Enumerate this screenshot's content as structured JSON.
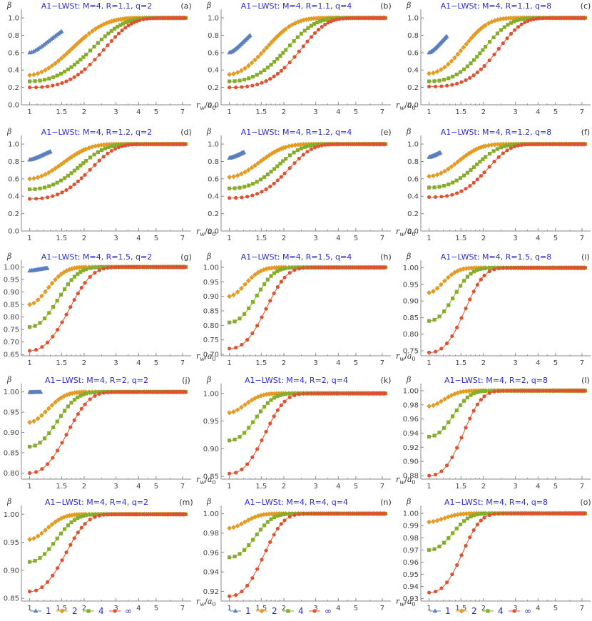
{
  "colors": {
    "s1": "#5b7fbf",
    "s2": "#e59b22",
    "s4": "#86ac2e",
    "sinf": "#e0522f",
    "title": "#2b2bd6",
    "axis": "#888888"
  },
  "legend": [
    {
      "label": "1",
      "marker": "triangle-icon"
    },
    {
      "label": "2",
      "marker": "diamond-icon"
    },
    {
      "label": "4",
      "marker": "square-icon"
    },
    {
      "label": "∞",
      "marker": "circle-icon"
    }
  ],
  "chart_data": [
    {
      "type": "line",
      "panel": "(a)",
      "title": "A1−LWSt: M=4, R=1.1, q=2",
      "M": 4,
      "R": 1.1,
      "q": 2,
      "ylabel": "β",
      "xlabel": "r_w/a_0",
      "xscale": "log",
      "xlim": [
        0.9,
        7.6
      ],
      "ylim": [
        0,
        1.05
      ],
      "yticks": [
        0.0,
        0.2,
        0.4,
        0.6,
        0.8,
        1.0
      ],
      "ytick_labels": [
        "0.0",
        "0.2",
        "0.4",
        "0.6",
        "0.8",
        "1.0"
      ],
      "xticks": [
        1,
        1.5,
        2,
        3,
        4,
        5,
        7
      ],
      "xtick_labels": [
        "1",
        "1.5",
        "2",
        "3",
        "4",
        "5",
        "7"
      ],
      "series": [
        {
          "name": "1",
          "y0": 0.6,
          "k": 2.48,
          "p": 1.4,
          "xmax": 1.5
        },
        {
          "name": "2",
          "y0": 0.34,
          "k": 1.07,
          "p": 1.6,
          "xmax": 7.3
        },
        {
          "name": "4",
          "y0": 0.27,
          "k": 0.5,
          "p": 1.9,
          "xmax": 7.3
        },
        {
          "name": "∞",
          "y0": 0.2,
          "k": 0.29,
          "p": 2.2,
          "xmax": 7.3
        }
      ]
    },
    {
      "type": "line",
      "panel": "(b)",
      "title": "A1−LWSt: M=4, R=1.1, q=4",
      "M": 4,
      "R": 1.1,
      "q": 4,
      "ylabel": "β",
      "xlabel": "r_w/a_0",
      "xscale": "log",
      "xlim": [
        0.9,
        7.6
      ],
      "ylim": [
        0,
        1.05
      ],
      "yticks": [
        0.0,
        0.2,
        0.4,
        0.6,
        0.8,
        1.0
      ],
      "ytick_labels": [
        "0.0",
        "0.2",
        "0.4",
        "0.6",
        "0.8",
        "1.0"
      ],
      "xticks": [
        1,
        1.5,
        2,
        3,
        4,
        5,
        7
      ],
      "xtick_labels": [
        "1",
        "1.5",
        "2",
        "3",
        "4",
        "5",
        "7"
      ],
      "series": [
        {
          "name": "1",
          "y0": 0.6,
          "k": 3.69,
          "p": 1.4,
          "xmax": 1.3
        },
        {
          "name": "2",
          "y0": 0.35,
          "k": 1.5,
          "p": 1.7,
          "xmax": 7.3
        },
        {
          "name": "4",
          "y0": 0.27,
          "k": 0.62,
          "p": 2.0,
          "xmax": 7.3
        },
        {
          "name": "∞",
          "y0": 0.2,
          "k": 0.32,
          "p": 2.3,
          "xmax": 7.3
        }
      ]
    },
    {
      "type": "line",
      "panel": "(c)",
      "title": "A1−LWSt: M=4, R=1.1, q=8",
      "M": 4,
      "R": 1.1,
      "q": 8,
      "ylabel": "β",
      "xlabel": "r_w/a_0",
      "xscale": "log",
      "xlim": [
        0.9,
        7.6
      ],
      "ylim": [
        0,
        1.05
      ],
      "yticks": [
        0.0,
        0.2,
        0.4,
        0.6,
        0.8,
        1.0
      ],
      "ytick_labels": [
        "0.0",
        "0.2",
        "0.4",
        "0.6",
        "0.8",
        "1.0"
      ],
      "xticks": [
        1,
        1.5,
        2,
        3,
        4,
        5,
        7
      ],
      "xtick_labels": [
        "1",
        "1.5",
        "2",
        "3",
        "4",
        "5",
        "7"
      ],
      "series": [
        {
          "name": "1",
          "y0": 0.6,
          "k": 4.42,
          "p": 1.4,
          "xmax": 1.25
        },
        {
          "name": "2",
          "y0": 0.36,
          "k": 1.86,
          "p": 1.8,
          "xmax": 7.3
        },
        {
          "name": "4",
          "y0": 0.27,
          "k": 0.71,
          "p": 2.1,
          "xmax": 7.3
        },
        {
          "name": "∞",
          "y0": 0.21,
          "k": 0.34,
          "p": 2.4,
          "xmax": 7.3
        }
      ]
    },
    {
      "type": "line",
      "panel": "(d)",
      "title": "A1−LWSt: M=4, R=1.2, q=2",
      "M": 4,
      "R": 1.2,
      "q": 2,
      "ylabel": "β",
      "xlabel": "r_w/a_0",
      "xscale": "log",
      "xlim": [
        0.9,
        7.6
      ],
      "ylim": [
        0,
        1.05
      ],
      "yticks": [
        0.0,
        0.2,
        0.4,
        0.6,
        0.8,
        1.0
      ],
      "ytick_labels": [
        "0.0",
        "0.2",
        "0.4",
        "0.6",
        "0.8",
        "1.0"
      ],
      "xticks": [
        1,
        1.5,
        2,
        3,
        4,
        5,
        7
      ],
      "xtick_labels": [
        "1",
        "1.5",
        "2",
        "3",
        "4",
        "5",
        "7"
      ],
      "series": [
        {
          "name": "1",
          "y0": 0.82,
          "k": 4.0,
          "p": 1.4,
          "xmax": 1.3
        },
        {
          "name": "2",
          "y0": 0.6,
          "k": 1.8,
          "p": 1.7,
          "xmax": 7.3
        },
        {
          "name": "4",
          "y0": 0.48,
          "k": 0.9,
          "p": 2.0,
          "xmax": 7.3
        },
        {
          "name": "∞",
          "y0": 0.37,
          "k": 0.55,
          "p": 2.2,
          "xmax": 7.3
        }
      ]
    },
    {
      "type": "line",
      "panel": "(e)",
      "title": "A1−LWSt: M=4, R=1.2, q=4",
      "M": 4,
      "R": 1.2,
      "q": 4,
      "ylabel": "β",
      "xlabel": "r_w/a_0",
      "xscale": "log",
      "xlim": [
        0.9,
        7.6
      ],
      "ylim": [
        0,
        1.05
      ],
      "yticks": [
        0.0,
        0.2,
        0.4,
        0.6,
        0.8,
        1.0
      ],
      "ytick_labels": [
        "0.0",
        "0.2",
        "0.4",
        "0.6",
        "0.8",
        "1.0"
      ],
      "xticks": [
        1,
        1.5,
        2,
        3,
        4,
        5,
        7
      ],
      "xtick_labels": [
        "1",
        "1.5",
        "2",
        "3",
        "4",
        "5",
        "7"
      ],
      "series": [
        {
          "name": "1",
          "y0": 0.84,
          "k": 5.0,
          "p": 1.4,
          "xmax": 1.2
        },
        {
          "name": "2",
          "y0": 0.62,
          "k": 2.2,
          "p": 1.7,
          "xmax": 7.3
        },
        {
          "name": "4",
          "y0": 0.49,
          "k": 1.0,
          "p": 2.1,
          "xmax": 7.3
        },
        {
          "name": "∞",
          "y0": 0.38,
          "k": 0.58,
          "p": 2.3,
          "xmax": 7.3
        }
      ]
    },
    {
      "type": "line",
      "panel": "(f)",
      "title": "A1−LWSt: M=4, R=1.2, q=8",
      "M": 4,
      "R": 1.2,
      "q": 8,
      "ylabel": "β",
      "xlabel": "r_w/a_0",
      "xscale": "log",
      "xlim": [
        0.9,
        7.6
      ],
      "ylim": [
        0,
        1.05
      ],
      "yticks": [
        0.0,
        0.2,
        0.4,
        0.6,
        0.8,
        1.0
      ],
      "ytick_labels": [
        "0.0",
        "0.2",
        "0.4",
        "0.6",
        "0.8",
        "1.0"
      ],
      "xticks": [
        1,
        1.5,
        2,
        3,
        4,
        5,
        7
      ],
      "xtick_labels": [
        "1",
        "1.5",
        "2",
        "3",
        "4",
        "5",
        "7"
      ],
      "series": [
        {
          "name": "1",
          "y0": 0.85,
          "k": 6.0,
          "p": 1.4,
          "xmax": 1.15
        },
        {
          "name": "2",
          "y0": 0.63,
          "k": 2.6,
          "p": 1.8,
          "xmax": 7.3
        },
        {
          "name": "4",
          "y0": 0.5,
          "k": 1.1,
          "p": 2.1,
          "xmax": 7.3
        },
        {
          "name": "∞",
          "y0": 0.39,
          "k": 0.6,
          "p": 2.4,
          "xmax": 7.3
        }
      ]
    },
    {
      "type": "line",
      "panel": "(g)",
      "title": "A1−LWSt: M=4, R=1.5, q=2",
      "M": 4,
      "R": 1.5,
      "q": 2,
      "ylabel": "β",
      "xlabel": "r_w/a_0",
      "xscale": "log",
      "xlim": [
        0.9,
        7.6
      ],
      "ylim": [
        0.645,
        1.01
      ],
      "yticks": [
        0.65,
        0.7,
        0.75,
        0.8,
        0.85,
        0.9,
        0.95,
        1.0
      ],
      "ytick_labels": [
        "0.65",
        "0.70",
        "0.75",
        "0.80",
        "0.85",
        "0.90",
        "0.95",
        "1.00"
      ],
      "xticks": [
        1,
        1.5,
        2,
        3,
        4,
        5,
        7
      ],
      "xtick_labels": [
        "1",
        "1.5",
        "2",
        "3",
        "4",
        "5",
        "7"
      ],
      "series": [
        {
          "name": "1",
          "y0": 0.985,
          "k": 8.0,
          "p": 1.4,
          "xmax": 1.25
        },
        {
          "name": "2",
          "y0": 0.85,
          "k": 5.5,
          "p": 1.7,
          "xmax": 7.3
        },
        {
          "name": "4",
          "y0": 0.76,
          "k": 3.0,
          "p": 1.9,
          "xmax": 7.3
        },
        {
          "name": "∞",
          "y0": 0.665,
          "k": 1.6,
          "p": 2.0,
          "xmax": 7.3
        }
      ]
    },
    {
      "type": "line",
      "panel": "(h)",
      "title": "A1−LWSt: M=4, R=1.5, q=4",
      "M": 4,
      "R": 1.5,
      "q": 4,
      "ylabel": "β",
      "xlabel": "r_w/a_0",
      "xscale": "log",
      "xlim": [
        0.9,
        7.6
      ],
      "ylim": [
        0.695,
        1.01
      ],
      "yticks": [
        0.7,
        0.75,
        0.8,
        0.85,
        0.9,
        0.95,
        1.0
      ],
      "ytick_labels": [
        "0.70",
        "0.75",
        "0.80",
        "0.85",
        "0.90",
        "0.95",
        "1.00"
      ],
      "xticks": [
        1,
        1.5,
        2,
        3,
        4,
        5,
        7
      ],
      "xtick_labels": [
        "1",
        "1.5",
        "2",
        "3",
        "4",
        "5",
        "7"
      ],
      "series": [
        {
          "name": "2",
          "y0": 0.9,
          "k": 7.0,
          "p": 1.7,
          "xmax": 7.3
        },
        {
          "name": "4",
          "y0": 0.81,
          "k": 3.8,
          "p": 2.0,
          "xmax": 7.3
        },
        {
          "name": "∞",
          "y0": 0.72,
          "k": 2.0,
          "p": 2.1,
          "xmax": 7.3
        }
      ]
    },
    {
      "type": "line",
      "panel": "(i)",
      "title": "A1−LWSt: M=4, R=1.5, q=8",
      "M": 4,
      "R": 1.5,
      "q": 8,
      "ylabel": "β",
      "xlabel": "r_w/a_0",
      "xscale": "log",
      "xlim": [
        0.9,
        7.6
      ],
      "ylim": [
        0.735,
        1.01
      ],
      "yticks": [
        0.75,
        0.8,
        0.85,
        0.9,
        0.95,
        1.0
      ],
      "ytick_labels": [
        "0.75",
        "0.80",
        "0.85",
        "0.90",
        "0.95",
        "1.00"
      ],
      "xticks": [
        1,
        1.5,
        2,
        3,
        4,
        5,
        7
      ],
      "xtick_labels": [
        "1",
        "1.5",
        "2",
        "3",
        "4",
        "5",
        "7"
      ],
      "series": [
        {
          "name": "2",
          "y0": 0.925,
          "k": 8.5,
          "p": 1.7,
          "xmax": 7.3
        },
        {
          "name": "4",
          "y0": 0.84,
          "k": 4.5,
          "p": 2.0,
          "xmax": 7.3
        },
        {
          "name": "∞",
          "y0": 0.745,
          "k": 2.3,
          "p": 2.2,
          "xmax": 7.3
        }
      ]
    },
    {
      "type": "line",
      "panel": "(j)",
      "title": "A1−LWSt: M=4, R=2, q=2",
      "M": 4,
      "R": 2,
      "q": 2,
      "ylabel": "β",
      "xlabel": "r_w/a_0",
      "xscale": "log",
      "xlim": [
        0.9,
        7.6
      ],
      "ylim": [
        0.785,
        1.01
      ],
      "yticks": [
        0.8,
        0.85,
        0.9,
        0.95,
        1.0
      ],
      "ytick_labels": [
        "0.80",
        "0.85",
        "0.90",
        "0.95",
        "1.00"
      ],
      "xticks": [
        1,
        1.5,
        2,
        3,
        4,
        5,
        7
      ],
      "xtick_labels": [
        "1",
        "1.5",
        "2",
        "3",
        "4",
        "5",
        "7"
      ],
      "series": [
        {
          "name": "1",
          "y0": 0.999,
          "k": 10,
          "p": 1.4,
          "xmax": 1.15
        },
        {
          "name": "2",
          "y0": 0.925,
          "k": 5.5,
          "p": 1.7,
          "xmax": 7.3
        },
        {
          "name": "4",
          "y0": 0.865,
          "k": 3.2,
          "p": 1.9,
          "xmax": 7.3
        },
        {
          "name": "∞",
          "y0": 0.8,
          "k": 1.8,
          "p": 2.0,
          "xmax": 7.3
        }
      ]
    },
    {
      "type": "line",
      "panel": "(k)",
      "title": "A1−LWSt: M=4, R=2, q=4",
      "M": 4,
      "R": 2,
      "q": 4,
      "ylabel": "β",
      "xlabel": "r_w/a_0",
      "xscale": "log",
      "xlim": [
        0.9,
        7.6
      ],
      "ylim": [
        0.845,
        1.01
      ],
      "yticks": [
        0.85,
        0.9,
        0.95,
        1.0
      ],
      "ytick_labels": [
        "0.85",
        "0.90",
        "0.95",
        "1.00"
      ],
      "xticks": [
        1,
        1.5,
        2,
        3,
        4,
        5,
        7
      ],
      "xtick_labels": [
        "1",
        "1.5",
        "2",
        "3",
        "4",
        "5",
        "7"
      ],
      "series": [
        {
          "name": "2",
          "y0": 0.965,
          "k": 7.0,
          "p": 1.7,
          "xmax": 7.3
        },
        {
          "name": "4",
          "y0": 0.915,
          "k": 4.0,
          "p": 2.0,
          "xmax": 7.3
        },
        {
          "name": "∞",
          "y0": 0.855,
          "k": 2.2,
          "p": 2.1,
          "xmax": 7.3
        }
      ]
    },
    {
      "type": "line",
      "panel": "(l)",
      "title": "A1−LWSt: M=4, R=2, q=8",
      "M": 4,
      "R": 2,
      "q": 8,
      "ylabel": "β",
      "xlabel": "r_w/a_0",
      "xscale": "log",
      "xlim": [
        0.9,
        7.6
      ],
      "ylim": [
        0.875,
        1.004
      ],
      "yticks": [
        0.88,
        0.9,
        0.92,
        0.94,
        0.96,
        0.98,
        1.0
      ],
      "ytick_labels": [
        "0.88",
        "0.90",
        "0.92",
        "0.94",
        "0.96",
        "0.98",
        "1.00"
      ],
      "xticks": [
        1,
        1.5,
        2,
        3,
        4,
        5,
        7
      ],
      "xtick_labels": [
        "1",
        "1.5",
        "2",
        "3",
        "4",
        "5",
        "7"
      ],
      "series": [
        {
          "name": "2",
          "y0": 0.978,
          "k": 8.0,
          "p": 1.7,
          "xmax": 7.3
        },
        {
          "name": "4",
          "y0": 0.935,
          "k": 4.8,
          "p": 2.0,
          "xmax": 7.3
        },
        {
          "name": "∞",
          "y0": 0.88,
          "k": 2.6,
          "p": 2.2,
          "xmax": 7.3
        }
      ]
    },
    {
      "type": "line",
      "panel": "(m)",
      "title": "A1−LWSt: M=4, R=4, q=2",
      "M": 4,
      "R": 4,
      "q": 2,
      "ylabel": "β",
      "xlabel": "r_w/a_0",
      "xscale": "log",
      "xlim": [
        0.9,
        7.6
      ],
      "ylim": [
        0.845,
        1.008
      ],
      "yticks": [
        0.85,
        0.9,
        0.95,
        1.0
      ],
      "ytick_labels": [
        "0.85",
        "0.90",
        "0.95",
        "1.00"
      ],
      "xticks": [
        1,
        1.5,
        2,
        3,
        4,
        5,
        7
      ],
      "xtick_labels": [
        "1",
        "1.5",
        "2",
        "3",
        "4",
        "5",
        "7"
      ],
      "series": [
        {
          "name": "2",
          "y0": 0.955,
          "k": 6.0,
          "p": 1.7,
          "xmax": 7.3
        },
        {
          "name": "4",
          "y0": 0.915,
          "k": 3.5,
          "p": 1.9,
          "xmax": 7.3
        },
        {
          "name": "∞",
          "y0": 0.862,
          "k": 2.0,
          "p": 2.0,
          "xmax": 7.3
        }
      ]
    },
    {
      "type": "line",
      "panel": "(n)",
      "title": "A1−LWSt: M=4, R=4, q=4",
      "M": 4,
      "R": 4,
      "q": 4,
      "ylabel": "β",
      "xlabel": "r_w/a_0",
      "xscale": "log",
      "xlim": [
        0.9,
        7.6
      ],
      "ylim": [
        0.91,
        1.004
      ],
      "yticks": [
        0.92,
        0.94,
        0.96,
        0.98,
        1.0
      ],
      "ytick_labels": [
        "0.92",
        "0.94",
        "0.96",
        "0.98",
        "1.00"
      ],
      "xticks": [
        1,
        1.5,
        2,
        3,
        4,
        5,
        7
      ],
      "xtick_labels": [
        "1",
        "1.5",
        "2",
        "3",
        "4",
        "5",
        "7"
      ],
      "series": [
        {
          "name": "2",
          "y0": 0.985,
          "k": 7.5,
          "p": 1.7,
          "xmax": 7.3
        },
        {
          "name": "4",
          "y0": 0.955,
          "k": 4.2,
          "p": 2.0,
          "xmax": 7.3
        },
        {
          "name": "∞",
          "y0": 0.915,
          "k": 2.4,
          "p": 2.1,
          "xmax": 7.3
        }
      ]
    },
    {
      "type": "line",
      "panel": "(o)",
      "title": "A1−LWSt: M=4, R=4, q=8",
      "M": 4,
      "R": 4,
      "q": 8,
      "ylabel": "β",
      "xlabel": "r_w/a_0",
      "xscale": "log",
      "xlim": [
        0.9,
        7.6
      ],
      "ylim": [
        0.928,
        1.003
      ],
      "yticks": [
        0.93,
        0.94,
        0.95,
        0.96,
        0.97,
        0.98,
        0.99,
        1.0
      ],
      "ytick_labels": [
        "0.93",
        "0.94",
        "0.95",
        "0.96",
        "0.97",
        "0.98",
        "0.99",
        "1.00"
      ],
      "xticks": [
        1,
        1.5,
        2,
        3,
        4,
        5,
        7
      ],
      "xtick_labels": [
        "1",
        "1.5",
        "2",
        "3",
        "4",
        "5",
        "7"
      ],
      "series": [
        {
          "name": "2",
          "y0": 0.993,
          "k": 8.0,
          "p": 1.7,
          "xmax": 7.3
        },
        {
          "name": "4",
          "y0": 0.97,
          "k": 5.0,
          "p": 2.0,
          "xmax": 7.3
        },
        {
          "name": "∞",
          "y0": 0.935,
          "k": 2.8,
          "p": 2.2,
          "xmax": 7.3
        }
      ]
    }
  ]
}
